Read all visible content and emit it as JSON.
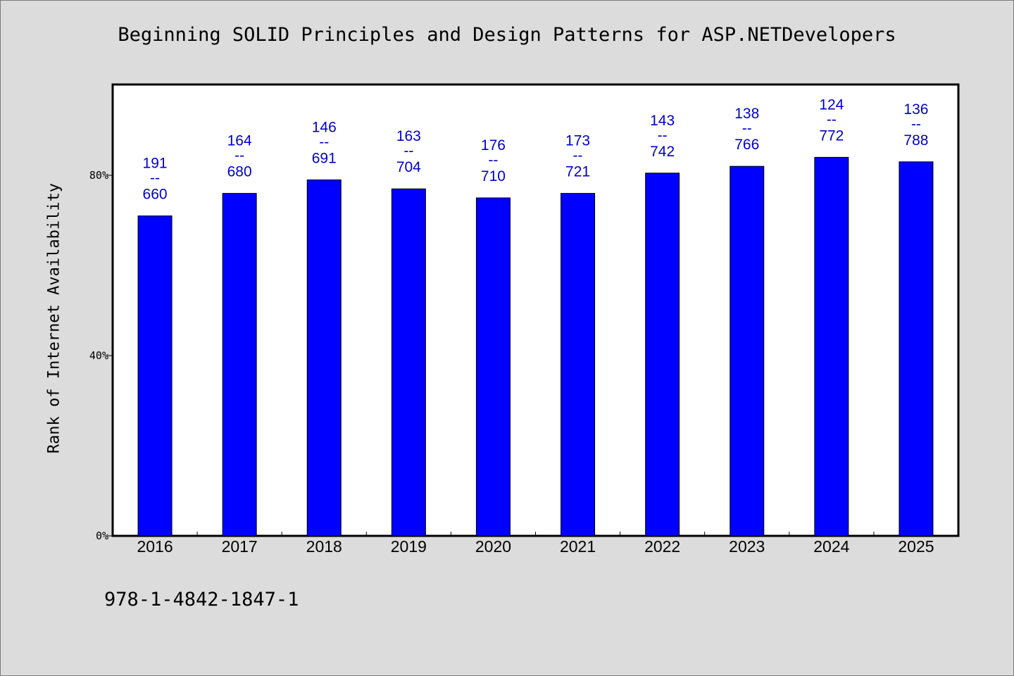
{
  "chart_data": {
    "type": "bar",
    "title": "Beginning SOLID Principles and Design Patterns for ASP.NETDevelopers",
    "xlabel": "",
    "ylabel": "Rank of Internet Availability",
    "categories": [
      "2016",
      "2017",
      "2018",
      "2019",
      "2020",
      "2021",
      "2022",
      "2023",
      "2024",
      "2025"
    ],
    "values": [
      71,
      76,
      79,
      77,
      75,
      76,
      80.5,
      82,
      84,
      83
    ],
    "data_labels": [
      {
        "top": "191",
        "sep": "--",
        "bottom": "660"
      },
      {
        "top": "164",
        "sep": "--",
        "bottom": "680"
      },
      {
        "top": "146",
        "sep": "--",
        "bottom": "691"
      },
      {
        "top": "163",
        "sep": "--",
        "bottom": "704"
      },
      {
        "top": "176",
        "sep": "--",
        "bottom": "710"
      },
      {
        "top": "173",
        "sep": "--",
        "bottom": "721"
      },
      {
        "top": "143",
        "sep": "--",
        "bottom": "742"
      },
      {
        "top": "138",
        "sep": "--",
        "bottom": "766"
      },
      {
        "top": "124",
        "sep": "--",
        "bottom": "772"
      },
      {
        "top": "136",
        "sep": "--",
        "bottom": "788"
      }
    ],
    "yticks": [
      {
        "value": 0,
        "label": "0%"
      },
      {
        "value": 40,
        "label": "40%"
      },
      {
        "value": 80,
        "label": "80%"
      }
    ],
    "ylim": [
      0,
      100
    ],
    "grid": false,
    "bar_color": "#0000ff",
    "label_color": "#0000cc"
  },
  "footer": {
    "isbn": "978-1-4842-1847-1"
  }
}
